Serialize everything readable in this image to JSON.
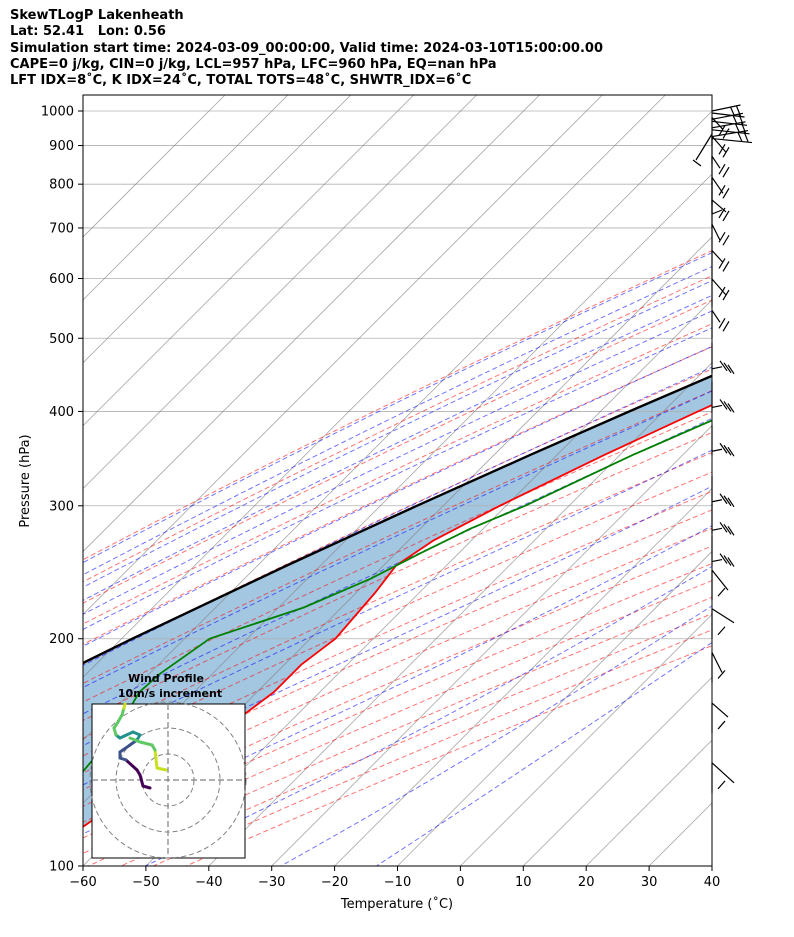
{
  "title_lines": [
    "SkewTLogP Lakenheath",
    "Lat: 52.41   Lon: 0.56",
    "Simulation start time: 2024-03-09_00:00:00, Valid time: 2024-03-10T15:00:00.00",
    "CAPE=0 j/kg, CIN=0 j/kg, LCL=957 hPa, LFC=960 hPa, EQ=nan hPa",
    "LFT IDX=8˚C, K IDX=24˚C, TOTAL TOTS=48˚C, SHWTR_IDX=6˚C"
  ],
  "colors": {
    "temperature": "#ff0000",
    "dewpoint": "#008000",
    "parcel": "#000000",
    "cape_fill": "#7fb0d6",
    "dry_adiabat": "#ff0000",
    "moist_adiabat": "#0000ff",
    "isotherm": "#808080",
    "mixing_ratio": "#9400d3"
  },
  "chart_data": {
    "type": "skewt",
    "xlabel": "Temperature (˚C)",
    "ylabel": "Pressure (hPa)",
    "xlim": [
      -60,
      40
    ],
    "ylim": [
      1050,
      100
    ],
    "log_pressure": true,
    "grid": true,
    "x_ticks": [
      -60,
      -50,
      -40,
      -30,
      -20,
      -10,
      0,
      10,
      20,
      30,
      40
    ],
    "x_tick_labels": [
      "−60",
      "−50",
      "−40",
      "−30",
      "−20",
      "−10",
      "0",
      "10",
      "20",
      "30",
      "40"
    ],
    "y_ticks": [
      1000,
      900,
      800,
      700,
      600,
      500,
      400,
      300,
      200,
      100
    ],
    "y_tick_labels": [
      "1000",
      "900",
      "800",
      "700",
      "600",
      "500",
      "400",
      "300",
      "200",
      "100"
    ],
    "series": [
      {
        "key": "temperature",
        "pressure": [
          990,
          960,
          940,
          900,
          850,
          800,
          750,
          700,
          650,
          600,
          550,
          500,
          450,
          400,
          350,
          300,
          270,
          250,
          230,
          200,
          185,
          170,
          155,
          140,
          125,
          110,
          100
        ],
        "temp": [
          9.4,
          8.0,
          7.3,
          5.7,
          4.0,
          2.3,
          0.0,
          -3.0,
          -6.5,
          -10.5,
          -15.0,
          -20.5,
          -27.0,
          -34.5,
          -42.5,
          -51.0,
          -56.0,
          -58.0,
          -57.0,
          -56.0,
          -57.3,
          -57.3,
          -58.9,
          -60.4,
          -63.8,
          -66.8,
          -69.7
        ]
      },
      {
        "key": "dewpoint",
        "pressure": [
          990,
          950,
          935,
          900,
          850,
          800,
          750,
          700,
          650,
          600,
          550,
          505,
          470,
          430,
          400,
          350,
          300,
          280,
          260,
          240,
          220,
          200,
          180,
          170,
          150,
          125,
          100
        ],
        "temp": [
          6.5,
          5.5,
          5.2,
          4.3,
          2.4,
          0.5,
          -1.5,
          -3.5,
          -7.0,
          -10.5,
          -15.0,
          -22.0,
          -23.0,
          -26.0,
          -29.0,
          -38.0,
          -47.0,
          -52.0,
          -56.0,
          -60.0,
          -66.0,
          -76.0,
          -78.3,
          -78.7,
          -76.0,
          -74.5,
          -72.6
        ]
      },
      {
        "key": "parcel",
        "pressure": [
          990,
          957,
          900,
          850,
          800,
          750,
          700,
          650,
          600,
          550,
          500,
          450,
          400,
          350,
          300,
          250,
          200,
          175,
          150,
          125,
          100
        ],
        "temp": [
          9.4,
          7.5,
          4.4,
          1.6,
          -1.6,
          -4.9,
          -8.8,
          -13.2,
          -18.1,
          -23.7,
          -30.1,
          -37.3,
          -45.4,
          -54.3,
          -64.2,
          -75.4,
          -88.3,
          -95.5,
          -103.4,
          -112.4,
          -123.0
        ]
      }
    ],
    "barbs_pressure_hpa": [
      1000,
      975,
      950,
      925,
      900,
      850,
      800,
      750,
      700,
      650,
      600,
      550,
      500,
      450,
      400,
      350,
      300,
      275,
      250,
      225,
      200,
      175,
      150,
      125
    ],
    "inset": {
      "title": "Wind Profile",
      "subtitle": "10m/s increment",
      "rings_ms": [
        10,
        20,
        30
      ]
    }
  }
}
